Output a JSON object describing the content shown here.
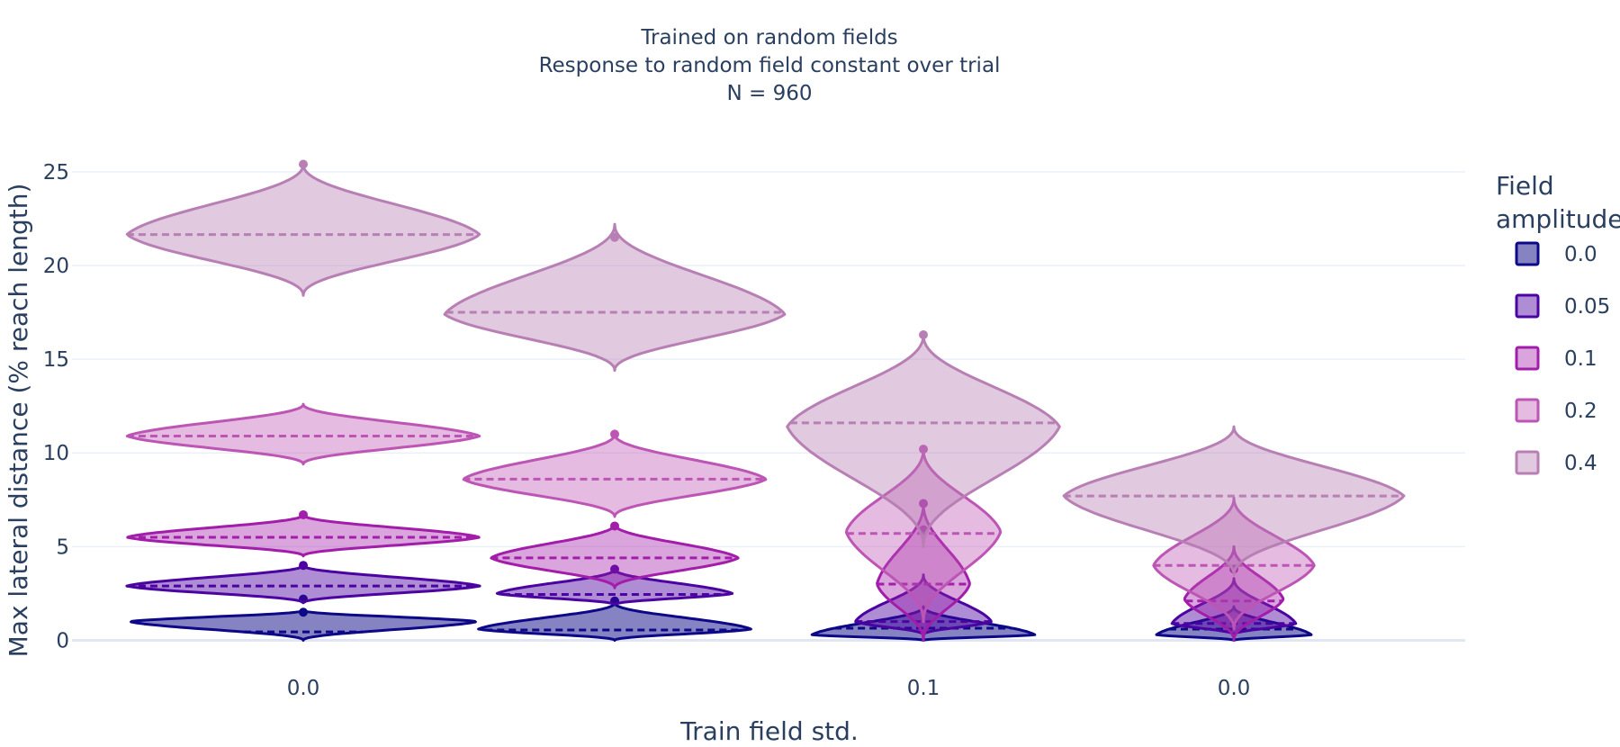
{
  "chart_data": {
    "type": "violin",
    "title_lines": [
      "Trained on random fields",
      "Response to random field constant over trial",
      "N = 960"
    ],
    "xlabel": "Train field std.",
    "ylabel": "Max lateral distance (% reach length)",
    "ylim": [
      -0.6,
      26
    ],
    "yticks": [
      0,
      5,
      10,
      15,
      20,
      25
    ],
    "grid": true,
    "legend": {
      "title_lines": [
        "Field",
        "amplitude"
      ],
      "placement": "right"
    },
    "x_tick_labels": [
      "0.0",
      "",
      "0.1",
      "0.0"
    ],
    "series": [
      {
        "name": "0.0",
        "color": "#0d0887",
        "fill": "rgba(13,8,135,0.5)",
        "groups": [
          {
            "category": 0,
            "min": 0.0,
            "max": 1.6,
            "median": 0.45,
            "mode": 1.0,
            "width": 0.56,
            "outliers": [
              1.5,
              2.2
            ]
          },
          {
            "category": 1,
            "min": 0.0,
            "max": 2.0,
            "median": 0.55,
            "mode": 0.6,
            "width": 0.44,
            "outliers": [
              2.1
            ]
          },
          {
            "category": 2,
            "min": 0.0,
            "max": 1.8,
            "median": 0.65,
            "mode": 0.3,
            "width": 0.36,
            "outliers": []
          },
          {
            "category": 3,
            "min": 0.0,
            "max": 1.8,
            "median": 0.6,
            "mode": 0.3,
            "width": 0.25,
            "outliers": []
          }
        ]
      },
      {
        "name": "0.05",
        "color": "#4b03a1",
        "fill": "rgba(75,3,161,0.45)",
        "groups": [
          {
            "category": 0,
            "min": 2.0,
            "max": 4.0,
            "median": 2.9,
            "mode": 2.9,
            "width": 0.57,
            "outliers": [
              4.0
            ]
          },
          {
            "category": 1,
            "min": 1.9,
            "max": 3.8,
            "median": 2.45,
            "mode": 2.5,
            "width": 0.38,
            "outliers": [
              3.8
            ]
          },
          {
            "category": 2,
            "min": 0.3,
            "max": 3.5,
            "median": 1.0,
            "mode": 1.0,
            "width": 0.22,
            "outliers": []
          },
          {
            "category": 3,
            "min": 0.3,
            "max": 3.3,
            "median": 0.9,
            "mode": 0.9,
            "width": 0.2,
            "outliers": []
          }
        ]
      },
      {
        "name": "0.1",
        "color": "#a21daa",
        "fill": "rgba(162,29,170,0.4)",
        "groups": [
          {
            "category": 0,
            "min": 4.5,
            "max": 6.7,
            "median": 5.5,
            "mode": 5.5,
            "width": 0.57,
            "outliers": [
              6.7
            ]
          },
          {
            "category": 1,
            "min": 2.8,
            "max": 6.2,
            "median": 4.4,
            "mode": 4.4,
            "width": 0.4,
            "outliers": [
              6.1
            ]
          },
          {
            "category": 2,
            "min": 0.0,
            "max": 7.3,
            "median": 3.0,
            "mode": 3.0,
            "width": 0.15,
            "outliers": [
              5.9,
              7.3
            ]
          },
          {
            "category": 3,
            "min": 0.0,
            "max": 5.0,
            "median": 2.1,
            "mode": 2.2,
            "width": 0.16,
            "outliers": [
              3.8
            ]
          }
        ]
      },
      {
        "name": "0.2",
        "color": "#bd55b5",
        "fill": "rgba(189,85,181,0.4)",
        "groups": [
          {
            "category": 0,
            "min": 9.4,
            "max": 12.6,
            "median": 10.9,
            "mode": 10.9,
            "width": 0.57,
            "outliers": []
          },
          {
            "category": 1,
            "min": 6.6,
            "max": 11.0,
            "median": 8.6,
            "mode": 8.6,
            "width": 0.49,
            "outliers": [
              11.0
            ]
          },
          {
            "category": 2,
            "min": 1.0,
            "max": 10.2,
            "median": 5.7,
            "mode": 5.8,
            "width": 0.25,
            "outliers": [
              10.2
            ]
          },
          {
            "category": 3,
            "min": 0.6,
            "max": 7.6,
            "median": 4.0,
            "mode": 4.0,
            "width": 0.26,
            "outliers": []
          }
        ]
      },
      {
        "name": "0.4",
        "color": "#b87fb4",
        "fill": "rgba(184,127,180,0.42)",
        "groups": [
          {
            "category": 0,
            "min": 18.4,
            "max": 25.4,
            "median": 21.65,
            "mode": 21.65,
            "width": 0.57,
            "outliers": [
              25.4
            ]
          },
          {
            "category": 1,
            "min": 14.4,
            "max": 22.2,
            "median": 17.5,
            "mode": 17.4,
            "width": 0.55,
            "outliers": [
              21.5
            ]
          },
          {
            "category": 2,
            "min": 5.0,
            "max": 16.3,
            "median": 11.6,
            "mode": 11.4,
            "width": 0.44,
            "outliers": [
              16.3
            ]
          },
          {
            "category": 3,
            "min": 3.5,
            "max": 11.4,
            "median": 7.7,
            "mode": 7.7,
            "width": 0.55,
            "outliers": []
          }
        ]
      }
    ]
  }
}
